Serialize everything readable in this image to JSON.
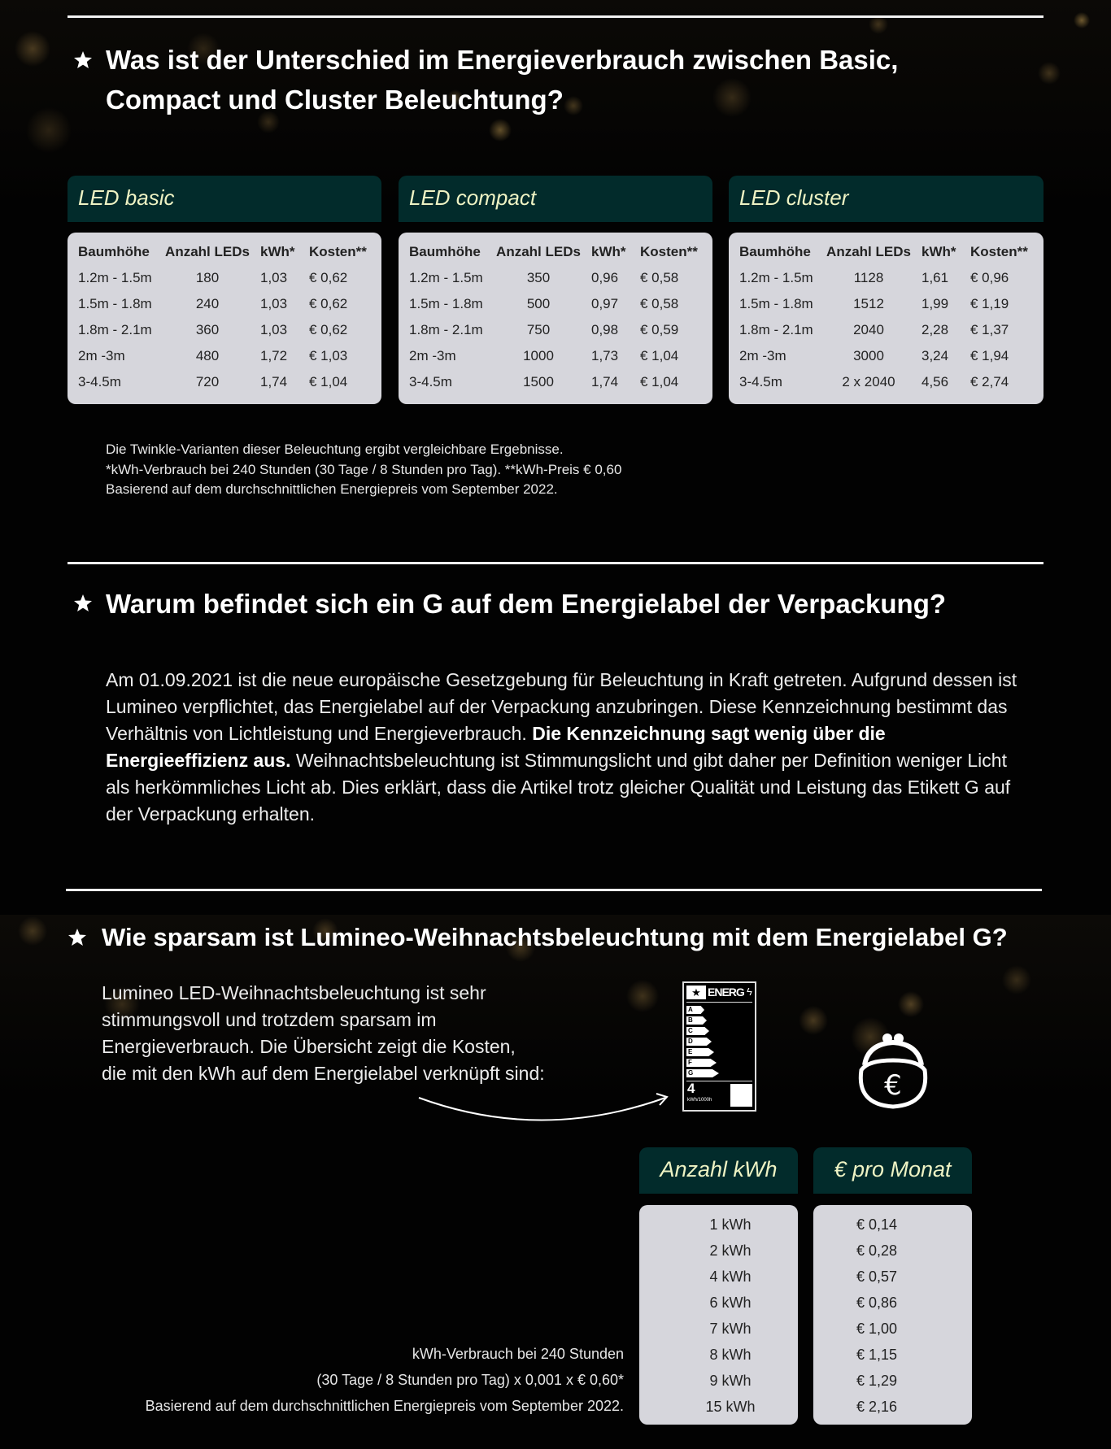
{
  "section1": {
    "title_line1": "Was ist der Unterschied im Energieverbrauch zwischen Basic,",
    "title_line2": "Compact und Cluster Beleuchtung?",
    "columns": [
      "Baumhöhe",
      "Anzahl LEDs",
      "kWh*",
      "Kosten**"
    ],
    "tables": [
      {
        "title": "LED basic",
        "rows": [
          [
            "1.2m - 1.5m",
            "180",
            "1,03",
            "€ 0,62"
          ],
          [
            "1.5m - 1.8m",
            "240",
            "1,03",
            "€ 0,62"
          ],
          [
            "1.8m - 2.1m",
            "360",
            "1,03",
            "€ 0,62"
          ],
          [
            "2m -3m",
            "480",
            "1,72",
            "€ 1,03"
          ],
          [
            "3-4.5m",
            "720",
            "1,74",
            "€ 1,04"
          ]
        ]
      },
      {
        "title": "LED compact",
        "rows": [
          [
            "1.2m - 1.5m",
            "350",
            "0,96",
            "€ 0,58"
          ],
          [
            "1.5m - 1.8m",
            "500",
            "0,97",
            "€ 0,58"
          ],
          [
            "1.8m - 2.1m",
            "750",
            "0,98",
            "€ 0,59"
          ],
          [
            "2m -3m",
            "1000",
            "1,73",
            "€ 1,04"
          ],
          [
            "3-4.5m",
            "1500",
            "1,74",
            "€ 1,04"
          ]
        ]
      },
      {
        "title": "LED cluster",
        "rows": [
          [
            "1.2m - 1.5m",
            "1128",
            "1,61",
            "€ 0,96"
          ],
          [
            "1.5m - 1.8m",
            "1512",
            "1,99",
            "€ 1,19"
          ],
          [
            "1.8m - 2.1m",
            "2040",
            "2,28",
            "€ 1,37"
          ],
          [
            "2m -3m",
            "3000",
            "3,24",
            "€ 1,94"
          ],
          [
            "3-4.5m",
            "2 x 2040",
            "4,56",
            "€ 2,74"
          ]
        ]
      }
    ],
    "notes": [
      "Die Twinkle-Varianten dieser Beleuchtung ergibt vergleichbare Ergebnisse.",
      "*kWh-Verbrauch bei 240 Stunden (30 Tage / 8 Stunden pro Tag). **kWh-Preis € 0,60",
      "Basierend auf dem durchschnittlichen Energiepreis vom September 2022."
    ]
  },
  "section2": {
    "title": "Warum befindet sich ein G auf dem Energielabel der Verpackung?",
    "para_part1": "Am 01.09.2021 ist die neue europäische Gesetzgebung für Beleuchtung in Kraft getreten. Aufgrund dessen ist Lumineo verpflichtet, das Energielabel auf der Verpackung anzubringen. Diese Kennzeichnung bestimmt das Verhältnis von Lichtleistung und Energieverbrauch. ",
    "para_bold": "Die Kennzeichnung sagt wenig über die Energieeffizienz aus.",
    "para_part2": " Weihnachtsbeleuchtung ist Stimmungslicht und gibt daher per Definition weniger Licht als herkömmliches Licht ab. Dies erklärt, dass die Artikel trotz gleicher Qualität und Leistung das Etikett G auf der Verpackung erhalten."
  },
  "section3": {
    "title": "Wie sparsam ist Lumineo-Weihnachtsbeleuchtung mit dem Energielabel G?",
    "intro_lines": [
      "Lumineo LED-Weihnachtsbeleuchtung ist sehr",
      "stimmungsvoll und trotzdem sparsam im",
      "Energieverbrauch. Die Übersicht zeigt die Kosten,",
      "die mit den kWh auf dem Energielabel verknüpft sind:"
    ],
    "energy_label": {
      "header": "ENERG",
      "classes": [
        "A",
        "B",
        "C",
        "D",
        "E",
        "F",
        "G"
      ],
      "value": "4",
      "unit": "kWh/1000h"
    },
    "purse_icon": "purse-euro-icon",
    "kwh_header": "Anzahl kWh",
    "cost_header": "€ pro Monat",
    "kwh_values": [
      "1 kWh",
      "2 kWh",
      "4 kWh",
      "6 kWh",
      "7 kWh",
      "8 kWh",
      "9 kWh",
      "15 kWh"
    ],
    "cost_values": [
      "€ 0,14",
      "€ 0,28",
      "€ 0,57",
      "€ 0,86",
      "€ 1,00",
      "€ 1,15",
      "€ 1,29",
      "€ 2,16"
    ],
    "formula_lines": [
      "kWh-Verbrauch bei 240 Stunden",
      "(30 Tage / 8 Stunden pro Tag) x 0,001 x € 0,60*",
      "Basierend auf dem durchschnittlichen Energiepreis vom September 2022."
    ]
  },
  "colors": {
    "header_bg": "#022b2b",
    "header_text": "#eef3c4",
    "table_bg": "#d6d6dc",
    "background": "#020202"
  }
}
